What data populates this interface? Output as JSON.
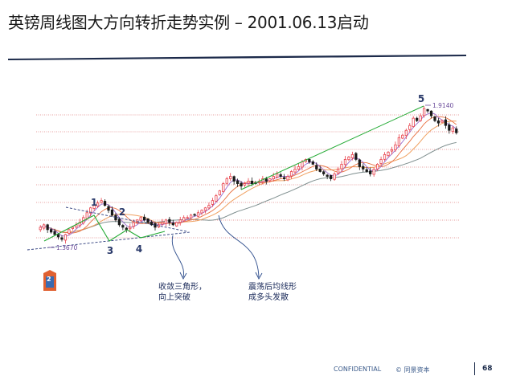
{
  "slide": {
    "title": "英镑周线图大方向转折走势实例 – 2001.06.13启动",
    "page_number": "68",
    "confidential": "CONFIDENTIAL",
    "copyright": "© 同景资本",
    "logo_number": "2"
  },
  "colors": {
    "title_rule": "#1c2a4a",
    "up_candle": "#e8404a",
    "down_candle": "#1a1a1a",
    "trendline_green": "#22aa33",
    "dashed_trendline": "#2a3a7a",
    "gridline": "#e08080",
    "ma_slow": "#7f8f8f",
    "ma_mid": "#f0a060",
    "ma_fast": "#9a6acb",
    "arrow": "#2a4a8a",
    "logo": "#e06030"
  },
  "chart_data": {
    "type": "candlestick",
    "title": "",
    "start_price": "1.3670",
    "end_price": "1.9140",
    "wave_labels": [
      "1",
      "2",
      "3",
      "4",
      "5"
    ],
    "annotations": [
      {
        "id": "triangle",
        "text": "收敛三角形，\n向上突破"
      },
      {
        "id": "consolidation",
        "text": "震荡后均线形\n成多头发散"
      }
    ],
    "series": [
      {
        "values": [
          1.42,
          1.43,
          1.41,
          1.4,
          1.39,
          1.38,
          1.37,
          1.39,
          1.41,
          1.42,
          1.43,
          1.44,
          1.46,
          1.48,
          1.5,
          1.51,
          1.52,
          1.53,
          1.51,
          1.49,
          1.47,
          1.45,
          1.43,
          1.42,
          1.41,
          1.42,
          1.44,
          1.45,
          1.46,
          1.45,
          1.44,
          1.43,
          1.42,
          1.43,
          1.44,
          1.45,
          1.44,
          1.43,
          1.44,
          1.45,
          1.46,
          1.46,
          1.47,
          1.47,
          1.48,
          1.49,
          1.5,
          1.51,
          1.53,
          1.55,
          1.57,
          1.6,
          1.62,
          1.63,
          1.61,
          1.6,
          1.59,
          1.6,
          1.61,
          1.6,
          1.6,
          1.61,
          1.62,
          1.61,
          1.62,
          1.63,
          1.64,
          1.63,
          1.62,
          1.63,
          1.65,
          1.66,
          1.67,
          1.69,
          1.7,
          1.69,
          1.68,
          1.66,
          1.65,
          1.64,
          1.63,
          1.62,
          1.64,
          1.66,
          1.68,
          1.7,
          1.71,
          1.72,
          1.7,
          1.67,
          1.66,
          1.65,
          1.64,
          1.66,
          1.68,
          1.7,
          1.72,
          1.73,
          1.74,
          1.76,
          1.79,
          1.8,
          1.82,
          1.84,
          1.87,
          1.86,
          1.88,
          1.91,
          1.9,
          1.88,
          1.86,
          1.85,
          1.86,
          1.84,
          1.82,
          1.83,
          1.81
        ]
      }
    ]
  }
}
